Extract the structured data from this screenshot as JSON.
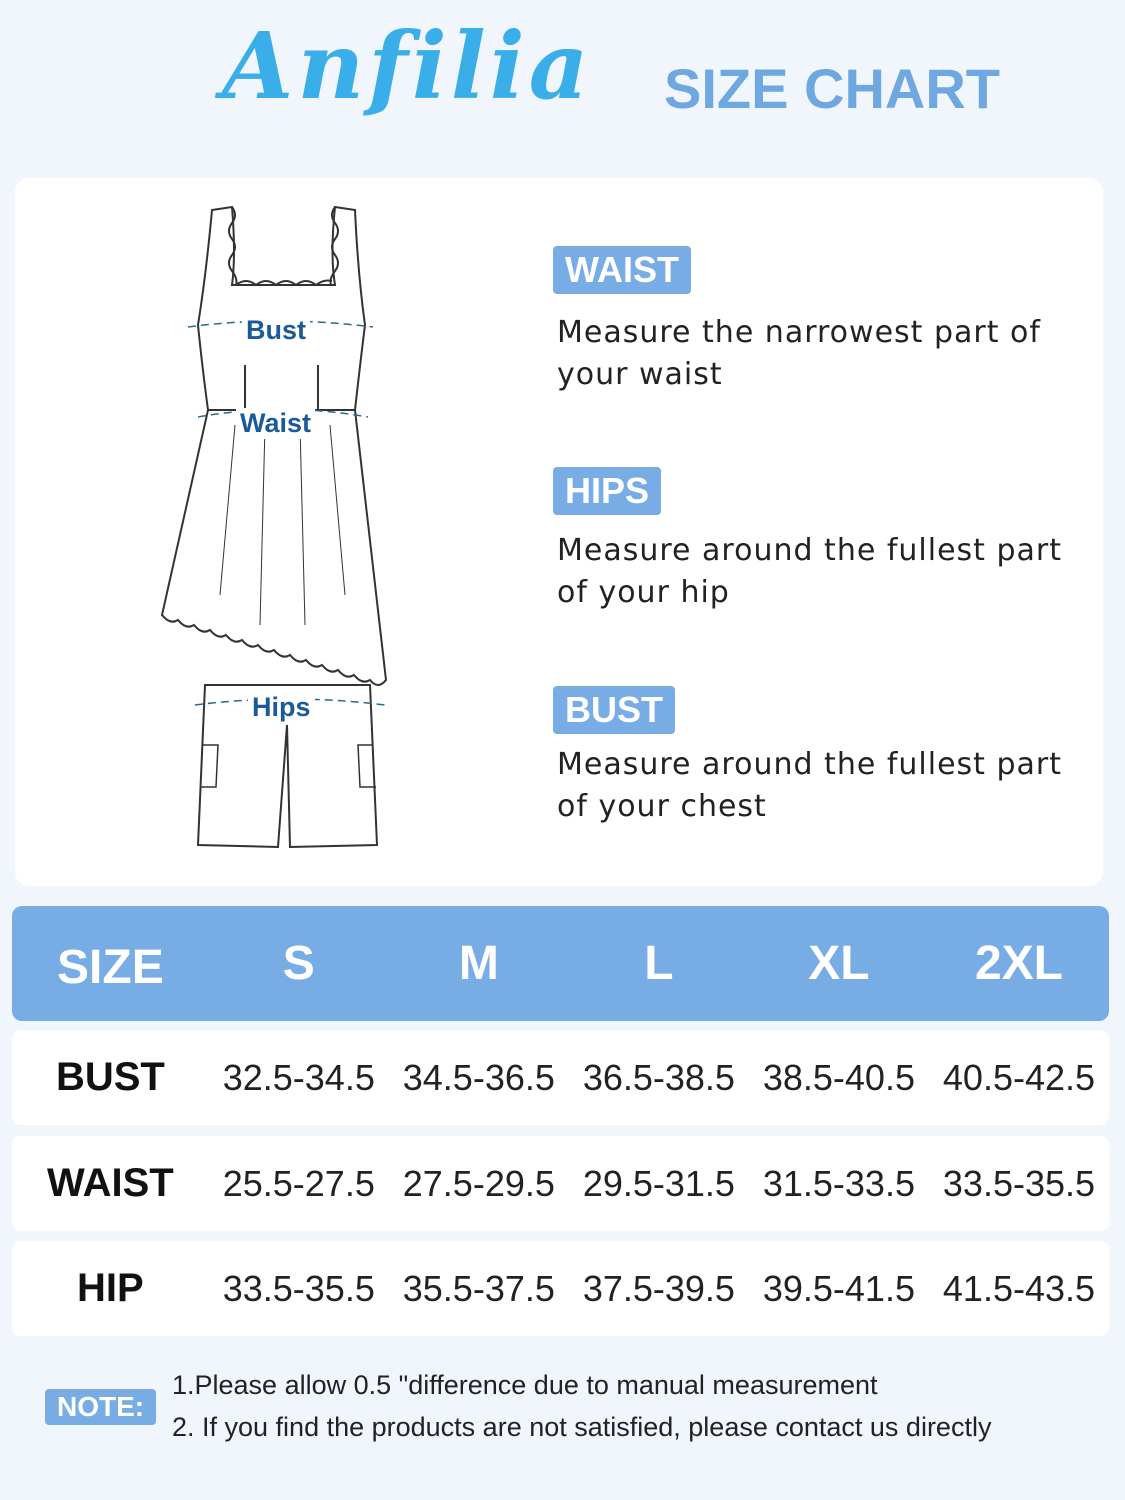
{
  "brand": "Anfilia",
  "title": "SIZE CHART",
  "figure_labels": {
    "bust": "Bust",
    "waist": "Waist",
    "hips": "Hips"
  },
  "instructions": [
    {
      "badge": "WAIST",
      "text": "Measure the narrowest part of your waist"
    },
    {
      "badge": "HIPS",
      "text": "Measure around the fullest part of your hip"
    },
    {
      "badge": "BUST",
      "text": "Measure around the fullest part of your chest"
    }
  ],
  "table": {
    "headers": [
      "SIZE",
      "S",
      "M",
      "L",
      "XL",
      "2XL"
    ],
    "rows": [
      [
        "BUST",
        "32.5-34.5",
        "34.5-36.5",
        "36.5-38.5",
        "38.5-40.5",
        "40.5-42.5"
      ],
      [
        "WAIST",
        "25.5-27.5",
        "27.5-29.5",
        "29.5-31.5",
        "31.5-33.5",
        "33.5-35.5"
      ],
      [
        "HIP",
        "33.5-35.5",
        "35.5-37.5",
        "37.5-39.5",
        "39.5-41.5",
        "41.5-43.5"
      ]
    ]
  },
  "note": {
    "label": "NOTE:",
    "lines": [
      "1.Please allow 0.5 \"difference due to manual measurement",
      "2. If you find the products are not satisfied, please contact us directly"
    ]
  },
  "colors": {
    "accent": "#78ace4",
    "logo": "#3aaee8",
    "label": "#1a5a9a",
    "background": "#f1f5fc"
  }
}
